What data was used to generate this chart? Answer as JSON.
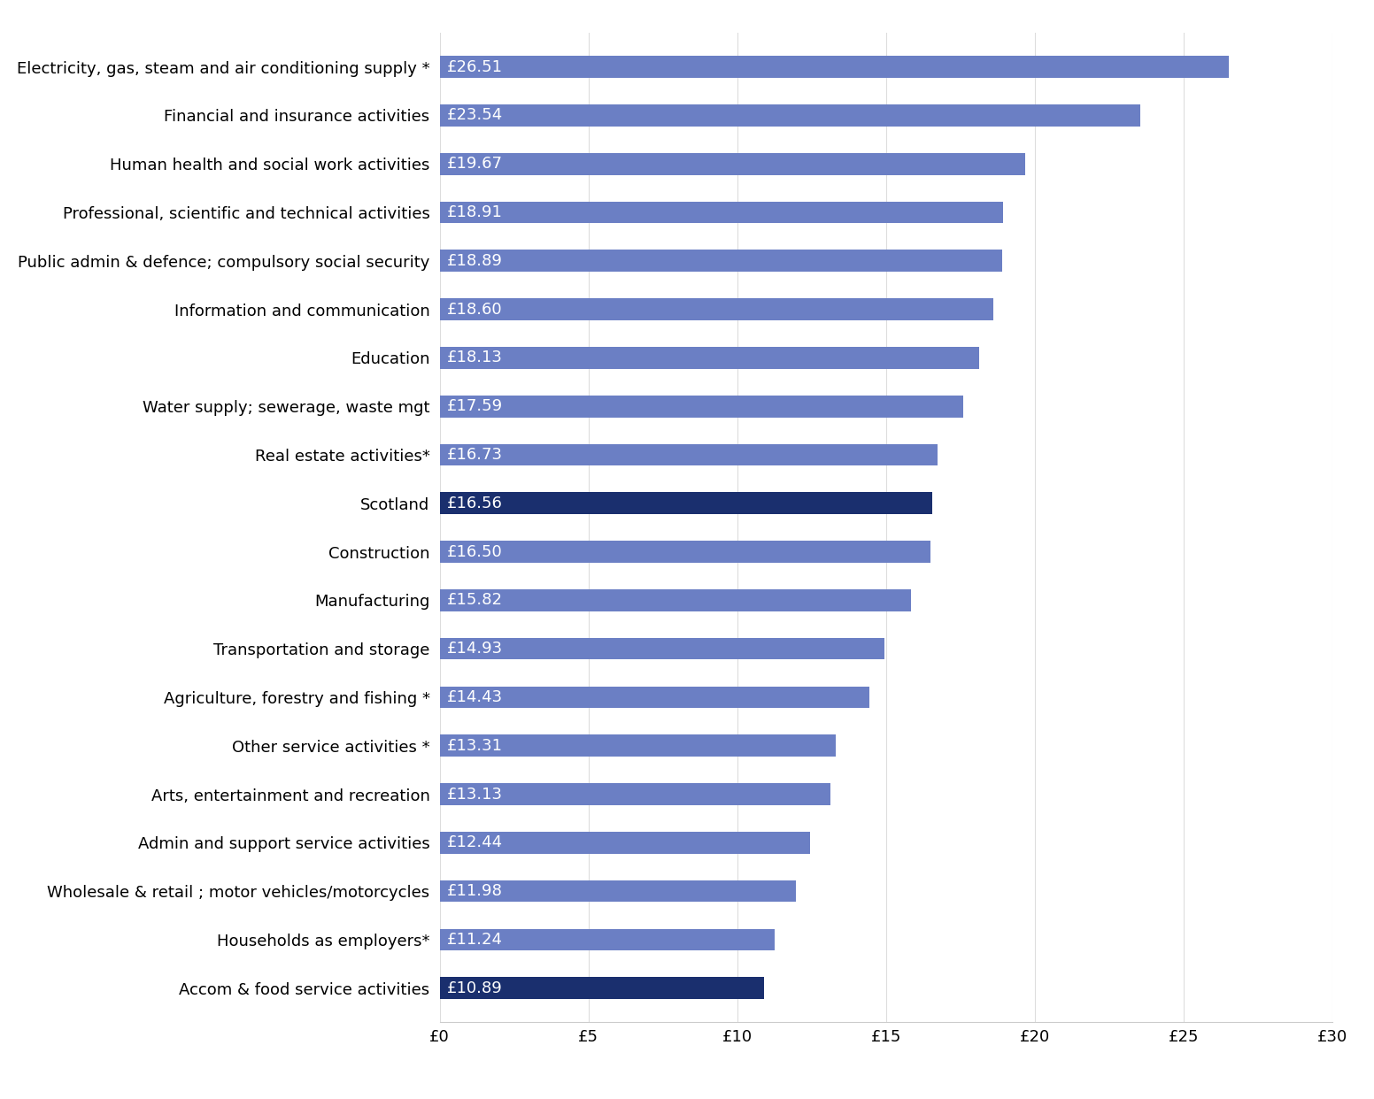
{
  "categories": [
    "Accom & food service activities",
    "Households as employers*",
    "Wholesale & retail ; motor vehicles/motorcycles",
    "Admin and support service activities",
    "Arts, entertainment and recreation",
    "Other service activities *",
    "Agriculture, forestry and fishing *",
    "Transportation and storage",
    "Manufacturing",
    "Construction",
    "Scotland",
    "Real estate activities*",
    "Water supply; sewerage, waste mgt",
    "Education",
    "Information and communication",
    "Public admin & defence; compulsory social security",
    "Professional, scientific and technical activities",
    "Human health and social work activities",
    "Financial and insurance activities",
    "Electricity, gas, steam and air conditioning supply *"
  ],
  "values": [
    10.89,
    11.24,
    11.98,
    12.44,
    13.13,
    13.31,
    14.43,
    14.93,
    15.82,
    16.5,
    16.56,
    16.73,
    17.59,
    18.13,
    18.6,
    18.89,
    18.91,
    19.67,
    23.54,
    26.51
  ],
  "labels": [
    "£10.89",
    "£11.24",
    "£11.98",
    "£12.44",
    "£13.13",
    "£13.31",
    "£14.43",
    "£14.93",
    "£15.82",
    "£16.50",
    "£16.56",
    "£16.73",
    "£17.59",
    "£18.13",
    "£18.60",
    "£18.89",
    "£18.91",
    "£19.67",
    "£23.54",
    "£26.51"
  ],
  "bar_colors": [
    "#1a2f6e",
    "#6b7fc4",
    "#6b7fc4",
    "#6b7fc4",
    "#6b7fc4",
    "#6b7fc4",
    "#6b7fc4",
    "#6b7fc4",
    "#6b7fc4",
    "#6b7fc4",
    "#1a2f6e",
    "#6b7fc4",
    "#6b7fc4",
    "#6b7fc4",
    "#6b7fc4",
    "#6b7fc4",
    "#6b7fc4",
    "#6b7fc4",
    "#6b7fc4",
    "#6b7fc4"
  ],
  "xlim": [
    0,
    30
  ],
  "xticks": [
    0,
    5,
    10,
    15,
    20,
    25,
    30
  ],
  "xticklabels": [
    "£0",
    "£5",
    "£10",
    "£15",
    "£20",
    "£25",
    "£30"
  ],
  "background_color": "#ffffff",
  "label_color": "#ffffff",
  "label_fontsize": 13,
  "category_fontsize": 13,
  "tick_fontsize": 13
}
